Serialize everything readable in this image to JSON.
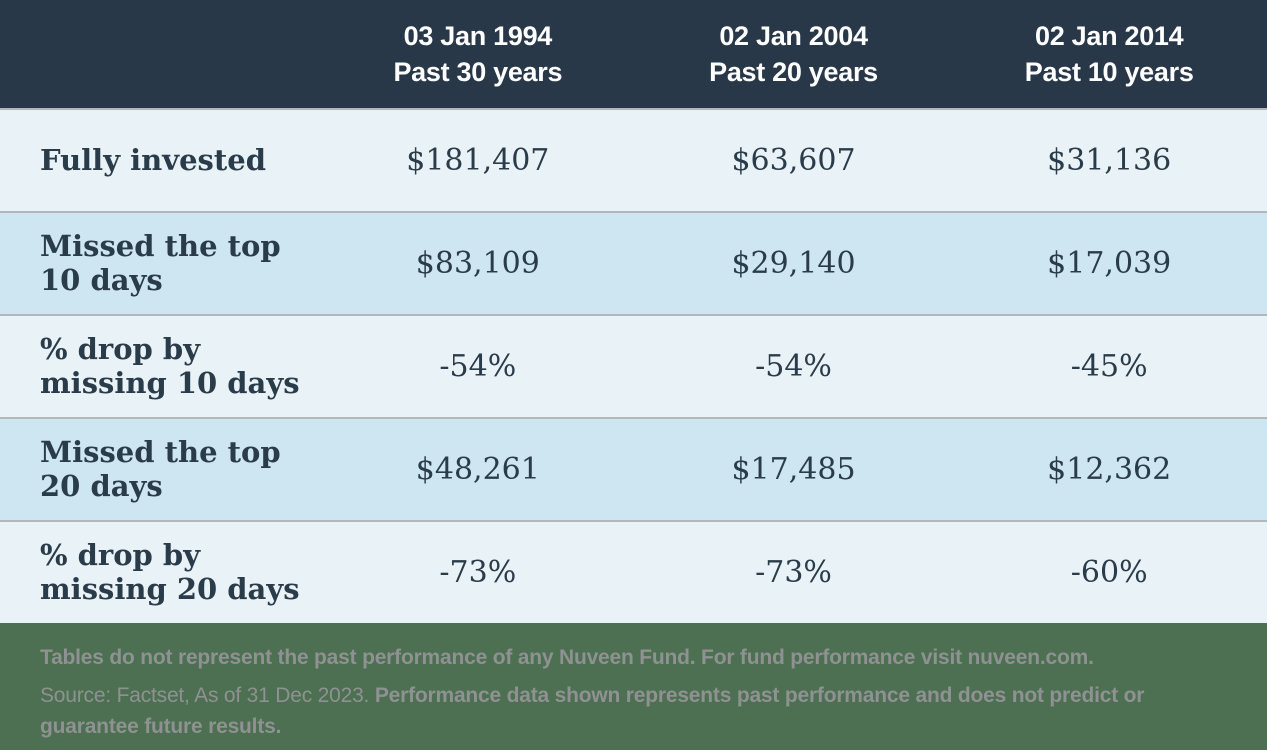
{
  "table": {
    "columns": [
      {
        "date": "03 Jan 1994",
        "period": "Past 30 years"
      },
      {
        "date": "02 Jan 2004",
        "period": "Past 20 years"
      },
      {
        "date": "02 Jan 2014",
        "period": "Past 10 years"
      }
    ],
    "rows": [
      {
        "label": "Fully invested",
        "values": [
          "$181,407",
          "$63,607",
          "$31,136"
        ]
      },
      {
        "label": "Missed the top\n10 days",
        "values": [
          "$83,109",
          "$29,140",
          "$17,039"
        ]
      },
      {
        "label": "% drop by\nmissing 10 days",
        "values": [
          "-54%",
          "-54%",
          "-45%"
        ]
      },
      {
        "label": "Missed the top\n20 days",
        "values": [
          "$48,261",
          "$17,485",
          "$12,362"
        ]
      },
      {
        "label": "% drop by\nmissing 20 days",
        "values": [
          "-73%",
          "-73%",
          "-60%"
        ]
      }
    ]
  },
  "footer": {
    "line1": "Tables do not represent the past performance of any Nuveen Fund. For fund performance visit nuveen.com.",
    "line2_regular": "Source: Factset, As of 31 Dec 2023.",
    "line2_bold": "Performance data shown represents past performance and does not predict or guarantee future results."
  },
  "colors": {
    "header_bg": "#283848",
    "row_light": "#e9f2f7",
    "row_blue": "#cee6f1",
    "separator": "#b3b7ba",
    "text_navy": "#2a3b4a",
    "footer_bg": "#4c7051",
    "footer_text": "#8f9192"
  },
  "chart_data": {
    "type": "table",
    "title": "",
    "columns": [
      "",
      "03 Jan 1994 Past 30 years",
      "02 Jan 2004 Past 20 years",
      "02 Jan 2014 Past 10 years"
    ],
    "rows": [
      [
        "Fully invested",
        "$181,407",
        "$63,607",
        "$31,136"
      ],
      [
        "Missed the top 10 days",
        "$83,109",
        "$29,140",
        "$17,039"
      ],
      [
        "% drop by missing 10 days",
        "-54%",
        "-54%",
        "-45%"
      ],
      [
        "Missed the top 20 days",
        "$48,261",
        "$17,485",
        "$12,362"
      ],
      [
        "% drop by missing 20 days",
        "-73%",
        "-73%",
        "-60%"
      ]
    ],
    "notes": [
      "Tables do not represent the past performance of any Nuveen Fund. For fund performance visit nuveen.com.",
      "Source: Factset, As of 31 Dec 2023. Performance data shown represents past performance and does not predict or guarantee future results."
    ]
  }
}
